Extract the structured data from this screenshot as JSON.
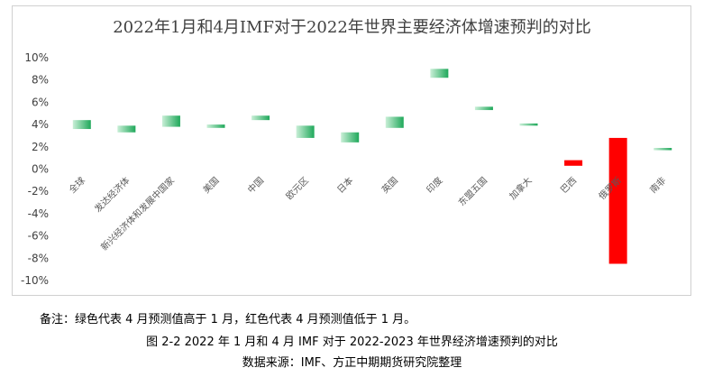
{
  "chart_data": {
    "type": "bar",
    "subtype": "floating-range",
    "title": "2022年1月和4月IMF对于2022年世界主要经济体增速预判的对比",
    "xlabel": "",
    "ylabel": "",
    "ylim": [
      -10,
      10
    ],
    "yticks": [
      10,
      8,
      6,
      4,
      2,
      0,
      -2,
      -4,
      -6,
      -8,
      -10
    ],
    "ytick_labels": [
      "10%",
      "8%",
      "6%",
      "4%",
      "2%",
      "0%",
      "-2%",
      "-4%",
      "-6%",
      "-8%",
      "-10%"
    ],
    "grid": false,
    "legend": "none",
    "categories": [
      "全球",
      "发达经济体",
      "新兴经济体和发展中国家",
      "美国",
      "中国",
      "欧元区",
      "日本",
      "英国",
      "印度",
      "东盟五国",
      "加拿大",
      "巴西",
      "俄罗斯",
      "南非"
    ],
    "series": [
      {
        "values": [
          4.4,
          3.9,
          4.8,
          4.0,
          4.8,
          3.9,
          3.3,
          4.7,
          9.0,
          5.6,
          4.1,
          0.3,
          -8.5,
          1.9
        ]
      },
      {
        "values": [
          3.6,
          3.3,
          3.8,
          3.7,
          4.4,
          2.8,
          2.4,
          3.7,
          8.2,
          5.3,
          3.9,
          0.8,
          2.8,
          1.7
        ]
      }
    ],
    "colors": {
      "up": "#1fa85a",
      "up_light": "#c9efd7",
      "down": "#ff0000"
    }
  },
  "notes": {
    "remark": "备注：绿色代表 4 月预测值高于 1 月，红色代表 4 月预测值低于 1 月。",
    "figure_caption": "图 2-2 2022 年 1 月和 4 月 IMF 对于 2022-2023 年世界经济增速预判的对比",
    "source": "数据来源：IMF、方正中期期货研究院整理"
  }
}
